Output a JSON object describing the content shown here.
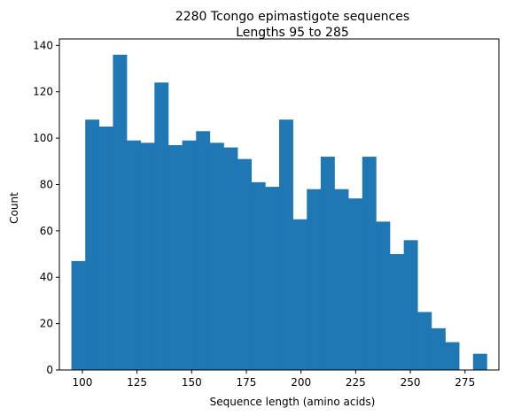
{
  "chart_data": {
    "type": "bar",
    "title_line1": "2280 Tcongo epimastigote sequences",
    "title_line2": "Lengths 95 to 285",
    "xlabel": "Sequence length (amino acids)",
    "ylabel": "Count",
    "xlim": [
      89.5,
      290.5
    ],
    "ylim": [
      0,
      142.8
    ],
    "bar_color": "#1f77b4",
    "bin_start": 95,
    "bin_width": 6.3333,
    "values": [
      47,
      108,
      105,
      136,
      99,
      98,
      124,
      97,
      99,
      103,
      98,
      96,
      91,
      81,
      79,
      108,
      65,
      78,
      92,
      78,
      74,
      92,
      64,
      50,
      56,
      25,
      18,
      12,
      0,
      7
    ],
    "xticks": [
      100,
      125,
      150,
      175,
      200,
      225,
      250,
      275
    ],
    "yticks": [
      0,
      20,
      40,
      60,
      80,
      100,
      120,
      140
    ],
    "grid": false,
    "legend": "none"
  }
}
